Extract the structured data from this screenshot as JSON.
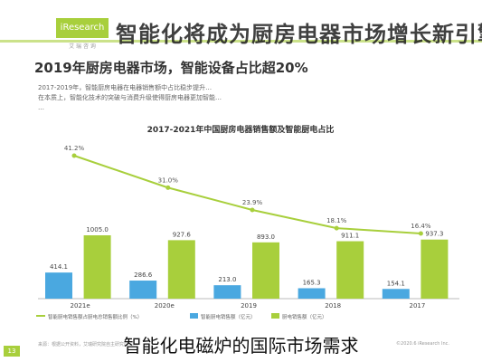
{
  "header": {
    "logo_text": "iResearch",
    "logo_sub": "艾 瑞 咨 询",
    "title": "智能化将成为厨房电器市场增长新引擎"
  },
  "subtitle": "2019年厨房电器市场，智能设备占比超20%",
  "body_lines": [
    "2017-2019年，智能厨房电器在电器销售额中占比稳步提升…",
    "在本质上，智能化技术的突破与消费升级使得厨房电器更加智能…",
    "…"
  ],
  "footer": {
    "left": "来源：根据公开资料，艾瑞研究院自主研究绘制。",
    "right": "©2020.6 iResearch Inc."
  },
  "page_number": "13",
  "caption": "智能化电磁炉的国际市场需求",
  "chart_data": {
    "type": "bar",
    "title": "2017-2021年中国厨房电器销售额及智能厨电占比",
    "categories": [
      "2021e",
      "2020e",
      "2019",
      "2018",
      "2017"
    ],
    "series": [
      {
        "name": "智能厨电销售额（亿元）",
        "values": [
          414.1,
          286.6,
          213.0,
          165.3,
          154.1
        ],
        "color": "#4aa8e0"
      },
      {
        "name": "厨电销售额（亿元）",
        "values": [
          1005.0,
          927.6,
          893.0,
          911.1,
          937.3
        ],
        "color": "#a8cf3c"
      }
    ],
    "line": {
      "name": "智能厨电销售额占厨电总销售额比例（%）",
      "values": [
        41.2,
        31.0,
        23.9,
        18.1,
        16.4
      ],
      "labels": [
        "41.2%",
        "31.0%",
        "23.9%",
        "18.1%",
        "16.4%"
      ],
      "color": "#a8cf3c"
    },
    "bar_labels": {
      "blue": [
        "414.1",
        "286.6",
        "213.0",
        "165.3",
        "154.1"
      ],
      "green": [
        "1005.0",
        "927.6",
        "893.0",
        "911.1",
        "937.3"
      ]
    },
    "legend_position": "bottom",
    "grid": false
  }
}
